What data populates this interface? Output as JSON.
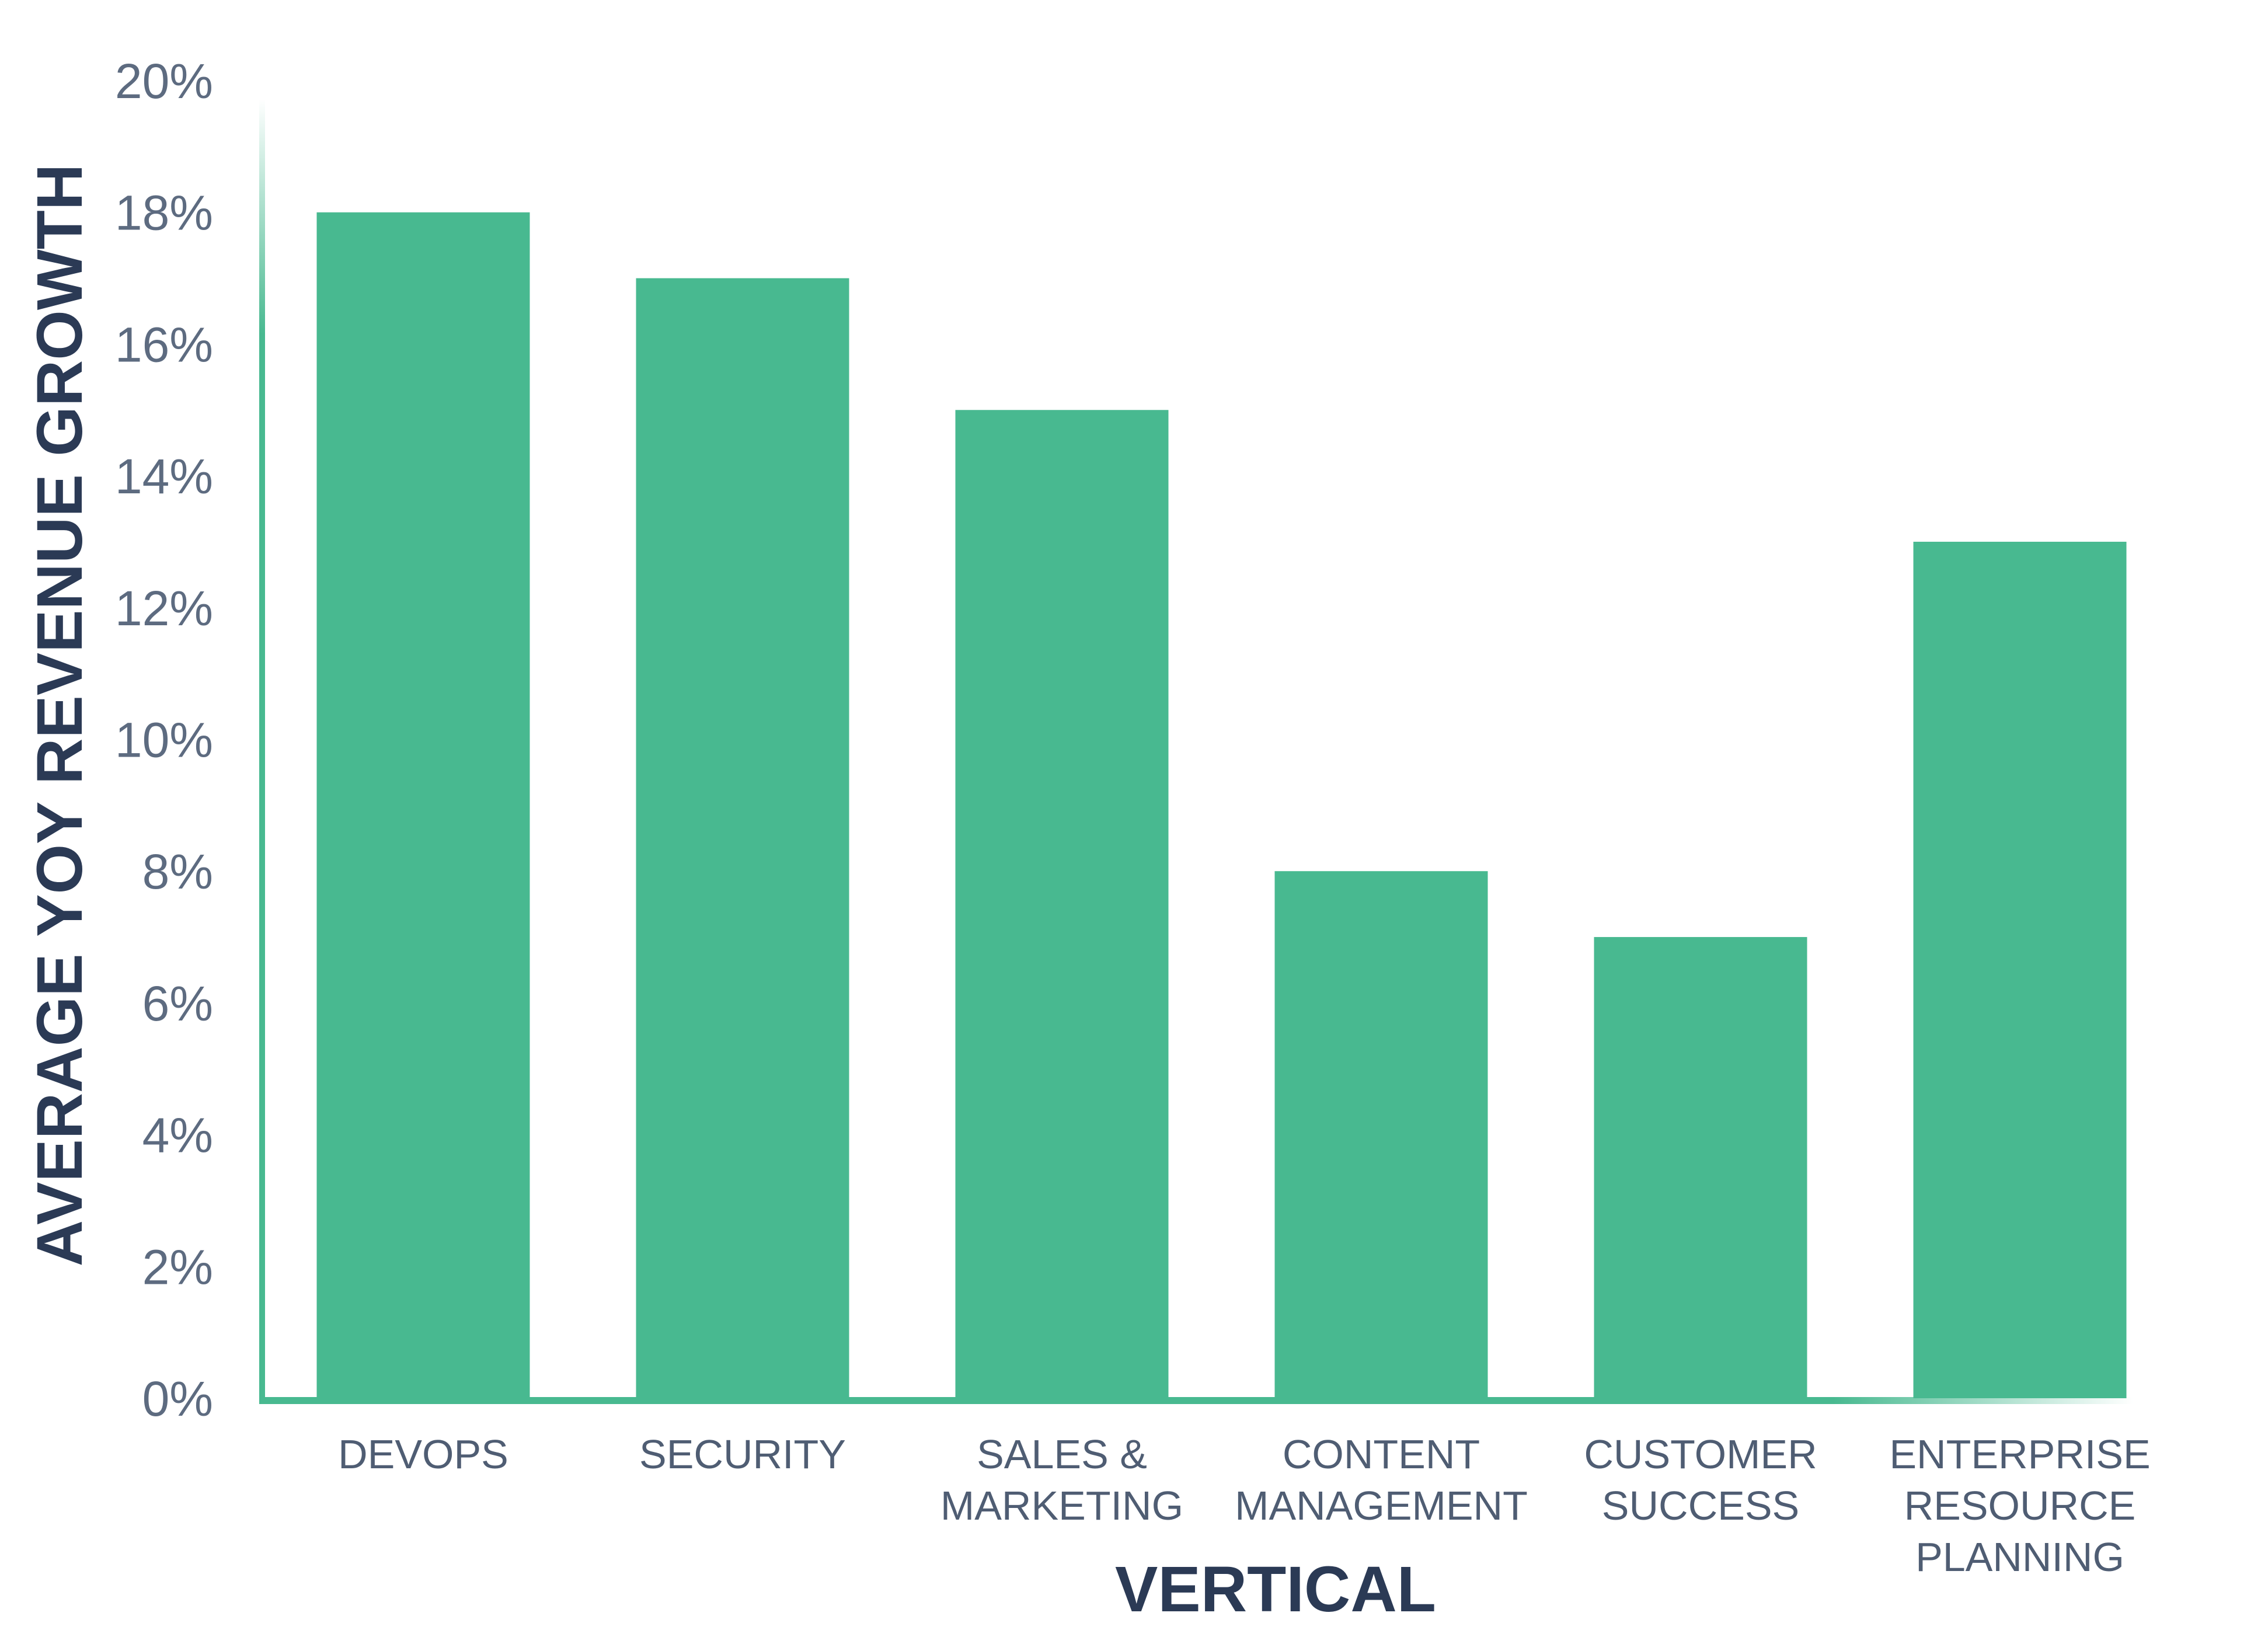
{
  "chart_data": {
    "type": "bar",
    "categories": [
      [
        "DEVOPS"
      ],
      [
        "SECURITY"
      ],
      [
        "SALES &",
        "MARKETING"
      ],
      [
        "CONTENT",
        "MANAGEMENT"
      ],
      [
        "CUSTOMER",
        "SUCCESS"
      ],
      [
        "ENTERPRISE",
        "RESOURCE",
        "PLANNING"
      ]
    ],
    "values": [
      18,
      17,
      15,
      8,
      7,
      13
    ],
    "xlabel": "VERTICAL",
    "ylabel": "AVERAGE YOY REVENUE GROWTH",
    "ylim": [
      0,
      20
    ],
    "yticks": [
      0,
      2,
      4,
      6,
      8,
      10,
      12,
      14,
      16,
      18,
      20
    ],
    "ytick_suffix": "%",
    "grid": false,
    "colors": {
      "bar": "#48b990",
      "axis": "#48b990",
      "title": "#2b3a55",
      "tick": "#5d6b80"
    }
  }
}
